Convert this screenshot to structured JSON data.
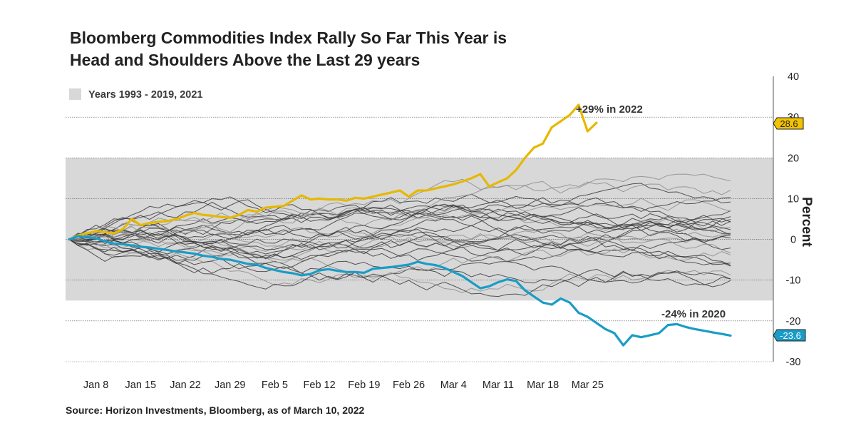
{
  "title_lines": [
    "Bloomberg Commodities Index Rally So Far This Year is",
    "Head and Shoulders Above the Last 29 years"
  ],
  "source": "Source: Horizon Investments, Bloomberg, as of March 10, 2022",
  "colors": {
    "band": "#d8d8d9",
    "series_2022": "#e6b800",
    "series_2020": "#1a9cc7",
    "history_dark": "#3a3a3a",
    "history_light": "#8d8d8d"
  },
  "chart_data": {
    "type": "line",
    "ylabel": "Percent",
    "ylim": [
      -30,
      40
    ],
    "yticks": [
      40,
      30,
      20,
      10,
      0,
      -10,
      -20,
      -30
    ],
    "x_tick_labels": [
      "Jan  8",
      "Jan 15",
      "Jan 22",
      "Jan 29",
      "Feb  5",
      "Feb 12",
      "Feb 19",
      "Feb 26",
      "Mar  4",
      "Mar 11",
      "Mar 18",
      "Mar 25"
    ],
    "grid": true,
    "legend": {
      "position": "top-left",
      "label": "Years 1993 - 2019, 2021"
    },
    "band_range": [
      -15,
      20
    ],
    "series": [
      {
        "name": "2022",
        "annotation": "+29% in 2022",
        "end_label": "28.6",
        "values": [
          0,
          1,
          1.5,
          2,
          1.8,
          1.5,
          2.5,
          5,
          3.5,
          4,
          4.3,
          4.5,
          5,
          5.8,
          6.5,
          6,
          5.8,
          5.5,
          5.3,
          6,
          7.2,
          6.8,
          7.8,
          8,
          8.2,
          9.5,
          10.8,
          9.8,
          10,
          9.8,
          9.8,
          9.5,
          10.2,
          10,
          10.5,
          11,
          11.5,
          12,
          10.5,
          12,
          12,
          12.5,
          13,
          13.5,
          14.2,
          15,
          16,
          13,
          14,
          15,
          17,
          20,
          22.5,
          23.5,
          27.5,
          29,
          30.5,
          33,
          26.5,
          28.6
        ]
      },
      {
        "name": "2020",
        "annotation": "-24% in 2020",
        "end_label": "-23.6",
        "values": [
          0,
          0.8,
          0.5,
          0.3,
          -0.5,
          -1,
          -1.2,
          -1.5,
          -1.8,
          -2,
          -2.3,
          -2.6,
          -3,
          -3.2,
          -3.5,
          -4,
          -4.3,
          -4.8,
          -5,
          -5.5,
          -6,
          -6.2,
          -7,
          -7.5,
          -8,
          -8.3,
          -8.8,
          -8.5,
          -7.6,
          -7.3,
          -7.7,
          -8,
          -8,
          -8.2,
          -7.2,
          -7,
          -6.8,
          -6.5,
          -6.2,
          -5.5,
          -6,
          -6.3,
          -7,
          -8,
          -9,
          -10.5,
          -12,
          -11.5,
          -10.5,
          -9.8,
          -10.2,
          -12.5,
          -14,
          -15.5,
          -16,
          -14.5,
          -15.5,
          -18,
          -19,
          -20.5,
          -22,
          -23,
          -26,
          -23.5,
          -24,
          -23.5,
          -23,
          -21,
          -20.8,
          -21.5,
          -22,
          -22.4,
          -22.8,
          -23.2,
          -23.6
        ]
      }
    ],
    "history_series_count": 28
  }
}
